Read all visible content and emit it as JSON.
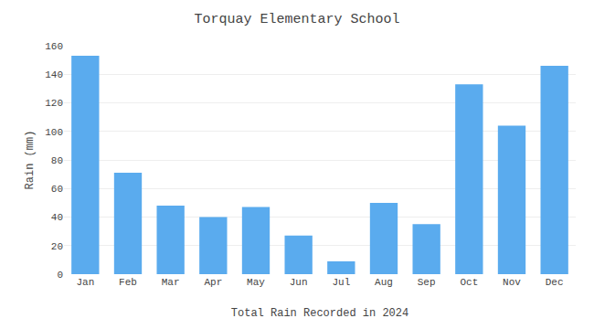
{
  "chart_data": {
    "type": "bar",
    "title": "Torquay Elementary School",
    "xlabel": "Total Rain Recorded in 2024",
    "ylabel": "Rain (mm)",
    "categories": [
      "Jan",
      "Feb",
      "Mar",
      "Apr",
      "May",
      "Jun",
      "Jul",
      "Aug",
      "Sep",
      "Oct",
      "Nov",
      "Dec"
    ],
    "values": [
      153,
      71,
      48,
      40,
      47,
      27,
      9,
      50,
      35,
      133,
      104,
      146
    ],
    "color": "#5aabee",
    "ylim": [
      0,
      160
    ],
    "yticks": [
      0,
      20,
      40,
      60,
      80,
      100,
      120,
      140,
      160
    ],
    "grid": true
  }
}
